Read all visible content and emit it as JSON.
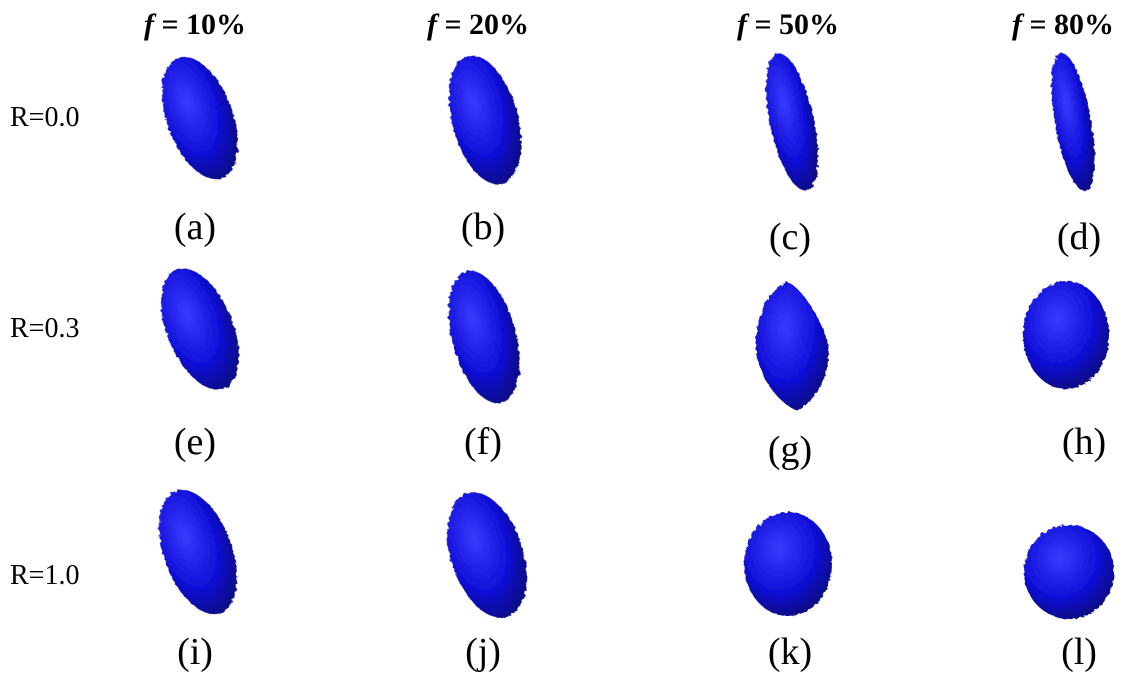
{
  "columns": [
    {
      "symbol": "f",
      "value": "= 10%"
    },
    {
      "symbol": "f",
      "value": "= 20%"
    },
    {
      "symbol": "f",
      "value": "= 50%"
    },
    {
      "symbol": "f",
      "value": "= 80%"
    }
  ],
  "rows": [
    "R=0.0",
    "R=0.3",
    "R=1.0"
  ],
  "panels": [
    "(a)",
    "(b)",
    "(c)",
    "(d)",
    "(e)",
    "(f)",
    "(g)",
    "(h)",
    "(i)",
    "(j)",
    "(k)",
    "(l)"
  ],
  "colors": {
    "shape_fill": "#1010d8",
    "shape_dark": "#06067a",
    "shape_light": "#3a3aff"
  }
}
